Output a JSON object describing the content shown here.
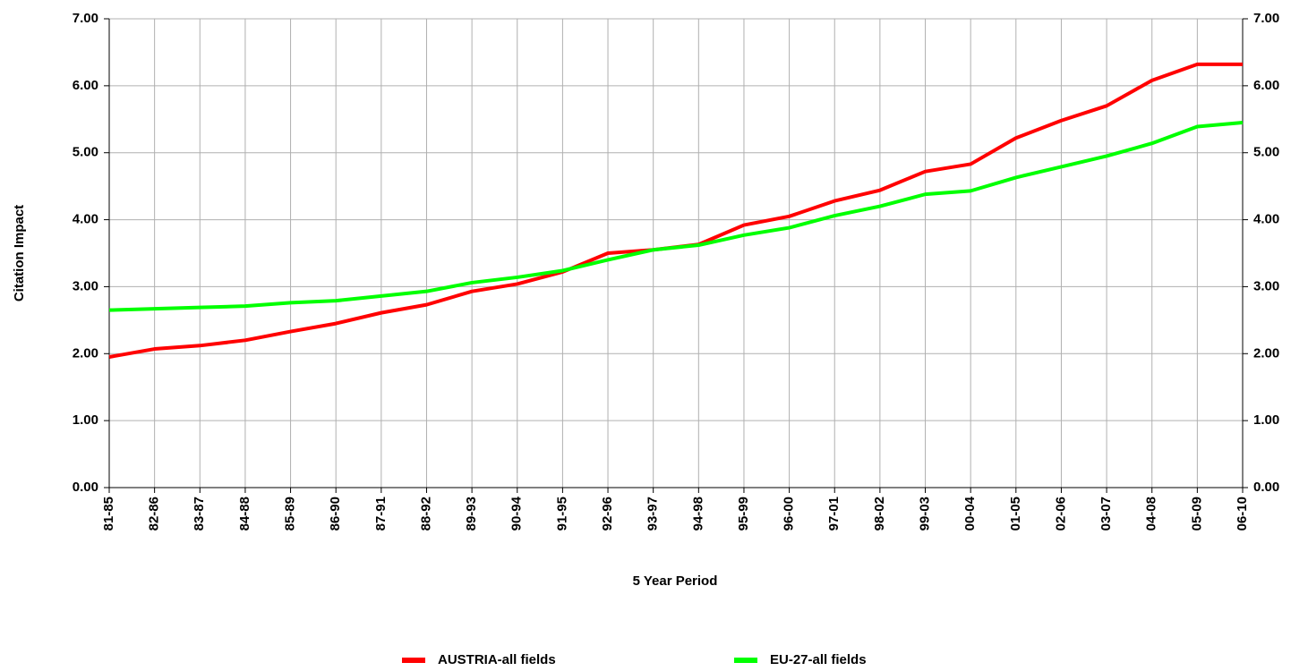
{
  "chart_data": {
    "type": "line",
    "x_label": "5 Year Period",
    "y_label": "Citation Impact",
    "categories": [
      "81-85",
      "82-86",
      "83-87",
      "84-88",
      "85-89",
      "86-90",
      "87-91",
      "88-92",
      "89-93",
      "90-94",
      "91-95",
      "92-96",
      "93-97",
      "94-98",
      "95-99",
      "96-00",
      "97-01",
      "98-02",
      "99-03",
      "00-04",
      "01-05",
      "02-06",
      "03-07",
      "04-08",
      "05-09",
      "06-10"
    ],
    "series": [
      {
        "name": "AUSTRIA-all fields",
        "color": "#ff0000",
        "values": [
          1.95,
          2.07,
          2.12,
          2.2,
          2.33,
          2.45,
          2.61,
          2.73,
          2.93,
          3.04,
          3.22,
          3.5,
          3.55,
          3.63,
          3.92,
          4.05,
          4.28,
          4.44,
          4.72,
          4.83,
          5.22,
          5.48,
          5.7,
          6.08,
          6.32,
          6.32
        ]
      },
      {
        "name": "EU-27-all fields",
        "color": "#00ff00",
        "values": [
          2.65,
          2.67,
          2.69,
          2.71,
          2.76,
          2.79,
          2.86,
          2.93,
          3.06,
          3.14,
          3.24,
          3.4,
          3.55,
          3.62,
          3.77,
          3.88,
          4.06,
          4.2,
          4.38,
          4.43,
          4.63,
          4.79,
          4.95,
          5.14,
          5.39,
          5.45
        ]
      }
    ],
    "ylim": [
      0,
      7
    ],
    "yticks": [
      {
        "value": 0,
        "label": "0.00"
      },
      {
        "value": 1,
        "label": "1.00"
      },
      {
        "value": 2,
        "label": "2.00"
      },
      {
        "value": 3,
        "label": "3.00"
      },
      {
        "value": 4,
        "label": "4.00"
      },
      {
        "value": 5,
        "label": "5.00"
      },
      {
        "value": 6,
        "label": "6.00"
      },
      {
        "value": 7,
        "label": "7.00"
      }
    ],
    "y2lim": [
      0,
      7
    ],
    "y2ticks": [
      {
        "value": 0,
        "label": "0.00"
      },
      {
        "value": 1,
        "label": "1.00"
      },
      {
        "value": 2,
        "label": "2.00"
      },
      {
        "value": 3,
        "label": "3.00"
      },
      {
        "value": 4,
        "label": "4.00"
      },
      {
        "value": 5,
        "label": "5.00"
      },
      {
        "value": 6,
        "label": "6.00"
      },
      {
        "value": 7,
        "label": "7.00"
      }
    ],
    "grid": true,
    "legend": "bottom"
  }
}
